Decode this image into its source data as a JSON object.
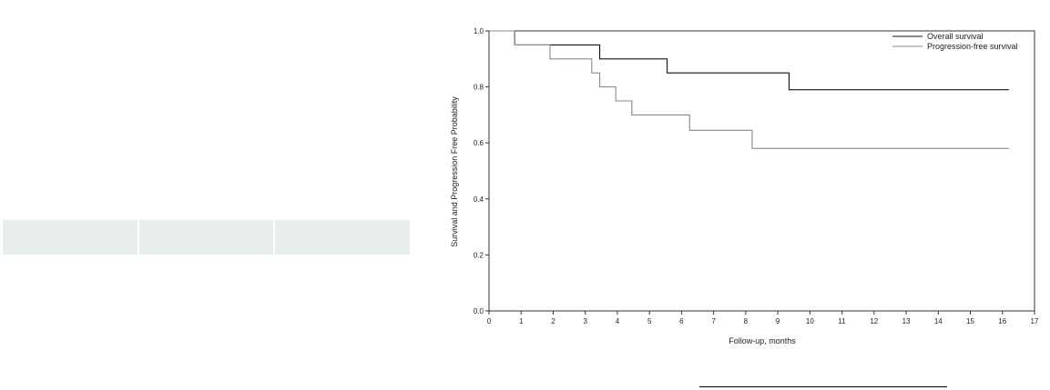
{
  "chart_data": {
    "type": "line",
    "title": "",
    "xlabel": "Follow-up, months",
    "ylabel": "Survival and Progression Free Probability",
    "xlim": [
      0,
      17
    ],
    "ylim": [
      0.0,
      1.0
    ],
    "x_ticks": [
      "0",
      "1",
      "2",
      "3",
      "4",
      "5",
      "6",
      "7",
      "8",
      "9",
      "10",
      "11",
      "12",
      "13",
      "14",
      "15",
      "16",
      "17"
    ],
    "y_ticks": [
      "0.0",
      "0.2",
      "0.4",
      "0.6",
      "0.8",
      "1.0"
    ],
    "grid": false,
    "legend_position": "top-right",
    "step": true,
    "series": [
      {
        "name": "Overall survival",
        "color": "#111111",
        "x": [
          0,
          0.8,
          3.45,
          5.55,
          9.35,
          16.2
        ],
        "y": [
          1.0,
          0.95,
          0.9,
          0.85,
          0.79,
          0.79
        ]
      },
      {
        "name": "Progression-free survival",
        "color": "#8a8a8a",
        "x": [
          0,
          0.8,
          1.9,
          3.2,
          3.45,
          3.75,
          3.95,
          4.45,
          6.25,
          8.2,
          16.2
        ],
        "y": [
          1.0,
          0.95,
          0.9,
          0.85,
          0.8,
          0.8,
          0.75,
          0.7,
          0.645,
          0.58,
          0.58
        ]
      }
    ]
  }
}
